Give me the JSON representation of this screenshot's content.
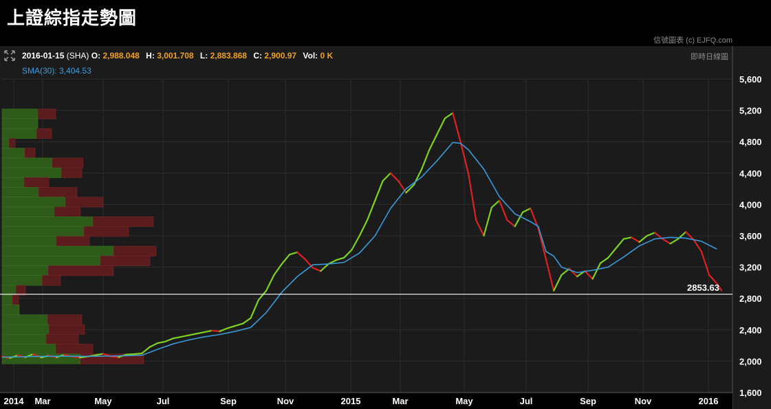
{
  "header": {
    "title": "上證綜指走勢圖"
  },
  "credit": "信號圖表 (c) EJFQ.com",
  "mode_label": "即時日線圖",
  "ohlc": {
    "date": "2016-01-15",
    "symbol": "(SHA)",
    "o_label": "O:",
    "o": "2,988.048",
    "h_label": "H:",
    "h": "3,001.708",
    "l_label": "L:",
    "l": "2,883.868",
    "c_label": "C:",
    "c": "2,900.97",
    "vol_label": "Vol:",
    "vol": "0 K"
  },
  "sma": {
    "label": "SMA(30):",
    "value": "3,404.53"
  },
  "colors": {
    "up": "#7ed321",
    "down": "#e02020",
    "sma": "#3a9ad9",
    "vp_up": "#2e5a1a",
    "vp_down": "#5a1c1c"
  },
  "chart_data": {
    "type": "line",
    "title": "上證綜指走勢圖",
    "series": [
      {
        "values": [
          [
            0,
            2060
          ],
          [
            5,
            2040
          ],
          [
            10,
            2075
          ],
          [
            15,
            2050
          ],
          [
            20,
            2090
          ],
          [
            25,
            2045
          ],
          [
            30,
            2070
          ],
          [
            35,
            2050
          ],
          [
            40,
            2080
          ],
          [
            45,
            2060
          ],
          [
            50,
            2045
          ],
          [
            55,
            2060
          ],
          [
            60,
            2075
          ],
          [
            65,
            2095
          ],
          [
            70,
            2060
          ],
          [
            75,
            2050
          ],
          [
            80,
            2085
          ],
          [
            85,
            2090
          ],
          [
            90,
            2100
          ],
          [
            95,
            2180
          ],
          [
            100,
            2230
          ],
          [
            105,
            2250
          ],
          [
            110,
            2290
          ],
          [
            115,
            2310
          ],
          [
            120,
            2330
          ],
          [
            125,
            2350
          ],
          [
            130,
            2370
          ],
          [
            135,
            2390
          ],
          [
            140,
            2380
          ],
          [
            145,
            2420
          ],
          [
            150,
            2450
          ],
          [
            155,
            2480
          ],
          [
            160,
            2550
          ],
          [
            165,
            2780
          ],
          [
            170,
            2900
          ],
          [
            175,
            3100
          ],
          [
            180,
            3240
          ],
          [
            185,
            3360
          ],
          [
            190,
            3390
          ],
          [
            195,
            3300
          ],
          [
            200,
            3190
          ],
          [
            205,
            3150
          ],
          [
            210,
            3240
          ],
          [
            215,
            3290
          ],
          [
            220,
            3320
          ],
          [
            225,
            3420
          ],
          [
            230,
            3600
          ],
          [
            235,
            3800
          ],
          [
            240,
            4050
          ],
          [
            245,
            4300
          ],
          [
            250,
            4400
          ],
          [
            255,
            4300
          ],
          [
            260,
            4150
          ],
          [
            265,
            4250
          ],
          [
            270,
            4450
          ],
          [
            275,
            4700
          ],
          [
            280,
            4900
          ],
          [
            285,
            5100
          ],
          [
            290,
            5166
          ],
          [
            295,
            4800
          ],
          [
            300,
            4400
          ],
          [
            305,
            3800
          ],
          [
            310,
            3600
          ],
          [
            315,
            3960
          ],
          [
            320,
            4050
          ],
          [
            325,
            3800
          ],
          [
            330,
            3720
          ],
          [
            335,
            3900
          ],
          [
            340,
            3950
          ],
          [
            345,
            3700
          ],
          [
            350,
            3300
          ],
          [
            355,
            2900
          ],
          [
            360,
            3100
          ],
          [
            365,
            3180
          ],
          [
            370,
            3080
          ],
          [
            375,
            3150
          ],
          [
            380,
            3050
          ],
          [
            385,
            3250
          ],
          [
            390,
            3320
          ],
          [
            395,
            3440
          ],
          [
            400,
            3560
          ],
          [
            405,
            3580
          ],
          [
            410,
            3520
          ],
          [
            415,
            3600
          ],
          [
            420,
            3640
          ],
          [
            425,
            3560
          ],
          [
            430,
            3500
          ],
          [
            435,
            3560
          ],
          [
            440,
            3650
          ],
          [
            445,
            3550
          ],
          [
            450,
            3400
          ],
          [
            455,
            3100
          ],
          [
            460,
            2990
          ],
          [
            463,
            2900
          ]
        ]
      },
      {
        "name": "SMA(30)",
        "values": [
          [
            0,
            2050
          ],
          [
            10,
            2055
          ],
          [
            20,
            2060
          ],
          [
            30,
            2062
          ],
          [
            40,
            2063
          ],
          [
            50,
            2062
          ],
          [
            60,
            2062
          ],
          [
            70,
            2065
          ],
          [
            80,
            2070
          ],
          [
            90,
            2075
          ],
          [
            100,
            2150
          ],
          [
            110,
            2220
          ],
          [
            120,
            2270
          ],
          [
            130,
            2310
          ],
          [
            140,
            2340
          ],
          [
            150,
            2380
          ],
          [
            160,
            2430
          ],
          [
            170,
            2620
          ],
          [
            180,
            2880
          ],
          [
            190,
            3080
          ],
          [
            200,
            3230
          ],
          [
            210,
            3240
          ],
          [
            220,
            3260
          ],
          [
            230,
            3380
          ],
          [
            240,
            3600
          ],
          [
            250,
            3950
          ],
          [
            260,
            4200
          ],
          [
            270,
            4350
          ],
          [
            280,
            4560
          ],
          [
            290,
            4790
          ],
          [
            295,
            4780
          ],
          [
            300,
            4700
          ],
          [
            310,
            4450
          ],
          [
            320,
            4100
          ],
          [
            330,
            3880
          ],
          [
            340,
            3780
          ],
          [
            345,
            3720
          ],
          [
            350,
            3400
          ],
          [
            355,
            3340
          ],
          [
            360,
            3200
          ],
          [
            370,
            3130
          ],
          [
            380,
            3160
          ],
          [
            390,
            3200
          ],
          [
            400,
            3330
          ],
          [
            410,
            3470
          ],
          [
            420,
            3560
          ],
          [
            430,
            3580
          ],
          [
            440,
            3570
          ],
          [
            450,
            3530
          ],
          [
            460,
            3430
          ]
        ]
      }
    ],
    "x_ticks": [
      "2014",
      "Mar",
      "May",
      "Jul",
      "Sep",
      "Nov",
      "2015",
      "Mar",
      "May",
      "Jul",
      "Sep",
      "Nov",
      "2016"
    ],
    "y_ticks": [
      "1,600",
      "2,000",
      "2,400",
      "2,800",
      "3,200",
      "3,600",
      "4,000",
      "4,400",
      "4,800",
      "5,200",
      "5,600"
    ],
    "y_tick_values": [
      1600,
      2000,
      2400,
      2800,
      3200,
      3600,
      4000,
      4400,
      4800,
      5200,
      5600
    ],
    "ylim": [
      1600,
      5600
    ],
    "x_range": [
      0,
      470
    ],
    "last_value": {
      "label": "2853.63",
      "value": 2853.63
    },
    "volume_profile": [
      {
        "price": 5150,
        "up": 52,
        "down": 26
      },
      {
        "price": 5025,
        "up": 52,
        "down": 0
      },
      {
        "price": 4900,
        "up": 50,
        "down": 22
      },
      {
        "price": 4775,
        "up": 10,
        "down": 9
      },
      {
        "price": 4650,
        "up": 33,
        "down": 15
      },
      {
        "price": 4525,
        "up": 73,
        "down": 45
      },
      {
        "price": 4400,
        "up": 86,
        "down": 30
      },
      {
        "price": 4275,
        "up": 32,
        "down": 36
      },
      {
        "price": 4150,
        "up": 53,
        "down": 56
      },
      {
        "price": 4025,
        "up": 92,
        "down": 55
      },
      {
        "price": 3900,
        "up": 76,
        "down": 38
      },
      {
        "price": 3775,
        "up": 132,
        "down": 88
      },
      {
        "price": 3650,
        "up": 119,
        "down": 65
      },
      {
        "price": 3525,
        "up": 79,
        "down": 48
      },
      {
        "price": 3400,
        "up": 162,
        "down": 62
      },
      {
        "price": 3275,
        "up": 143,
        "down": 72
      },
      {
        "price": 3150,
        "up": 67,
        "down": 95
      },
      {
        "price": 3025,
        "up": 58,
        "down": 27
      },
      {
        "price": 2900,
        "up": 20,
        "down": 14
      },
      {
        "price": 2775,
        "up": 15,
        "down": 9
      },
      {
        "price": 2650,
        "up": 25,
        "down": 0
      },
      {
        "price": 2525,
        "up": 66,
        "down": 50
      },
      {
        "price": 2400,
        "up": 68,
        "down": 52
      },
      {
        "price": 2275,
        "up": 64,
        "down": 47
      },
      {
        "price": 2150,
        "up": 78,
        "down": 54
      },
      {
        "price": 2025,
        "up": 114,
        "down": 92
      }
    ],
    "grid": true,
    "legend": "none"
  }
}
